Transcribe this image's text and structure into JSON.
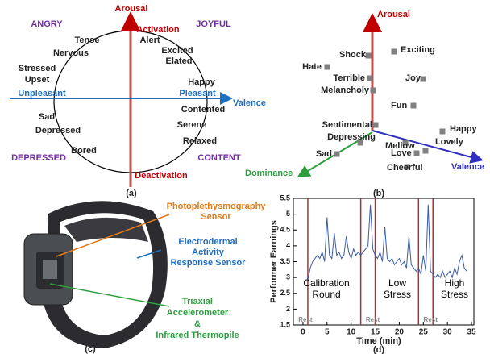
{
  "panel_a": {
    "caption": "(a)",
    "axis_top": "Arousal",
    "axis_right": "Valence",
    "poles": [
      "Activation",
      "Deactivation",
      "Unpleasant",
      "Pleasant"
    ],
    "quadrants": [
      "ANGRY",
      "JOYFUL",
      "DEPRESSED",
      "CONTENT"
    ],
    "emotions": [
      "Tense",
      "Alert",
      "Nervous",
      "Excited",
      "Elated",
      "Stressed",
      "Upset",
      "Happy",
      "Contented",
      "Serene",
      "Relaxed",
      "Sad",
      "Depressed",
      "Bored"
    ]
  },
  "panel_b": {
    "caption": "(b)",
    "axes": [
      "Arousal",
      "Valence",
      "Dominance"
    ],
    "words": [
      "Shock",
      "Exciting",
      "Hate",
      "Terrible",
      "Joy",
      "Melancholy",
      "Fun",
      "Sentimental",
      "Depressing",
      "Happy",
      "Mellow",
      "Lovely",
      "Sad",
      "Love",
      "Cheerful"
    ]
  },
  "panel_c": {
    "caption": "(c)",
    "ppg": [
      "Photoplethysmography",
      "Sensor"
    ],
    "eda": [
      "Electrodermal",
      "Activity",
      "Response Sensor"
    ],
    "acc": [
      "Triaxial",
      "Accelerometer",
      "&",
      "Infrared Thermopile"
    ]
  },
  "chart_data": {
    "type": "line",
    "caption": "(d)",
    "x_label": "Time (min)",
    "y_label": "Performer Earnings",
    "color": "#3b5ba8",
    "x": [
      1,
      1.5,
      2,
      2.5,
      3,
      3.5,
      4,
      4.5,
      5,
      5.5,
      6,
      6.5,
      7,
      7.5,
      8,
      8.5,
      9,
      9.5,
      10,
      10.5,
      11,
      11.5,
      12,
      12.5,
      13,
      13.5,
      14,
      14.5,
      15,
      15.5,
      16,
      16.5,
      17,
      17.5,
      18,
      18.5,
      19,
      19.5,
      20,
      20.5,
      21,
      21.5,
      22,
      22.5,
      23,
      23.5,
      24,
      24.5,
      25,
      25.5,
      26,
      26.5,
      27,
      27.5,
      28,
      28.5,
      29,
      29.5,
      30,
      30.5,
      31,
      31.5,
      32,
      32.5,
      33,
      33.5,
      34
    ],
    "values": [
      2.9,
      3.3,
      3.5,
      3.6,
      3.7,
      3.6,
      3.8,
      3.5,
      4.9,
      3.7,
      3.6,
      4.4,
      3.7,
      3.8,
      3.6,
      3.7,
      4.3,
      3.8,
      3.6,
      3.9,
      3.7,
      3.8,
      3.7,
      3.8,
      3.9,
      4.0,
      5.3,
      3.9,
      3.7,
      3.6,
      3.8,
      3.5,
      4.6,
      3.6,
      3.5,
      3.6,
      3.4,
      3.5,
      3.6,
      3.4,
      3.5,
      3.3,
      4.3,
      3.4,
      3.3,
      3.2,
      3.3,
      3.1,
      3.7,
      3.2,
      5.3,
      3.2,
      3.1,
      3.0,
      3.1,
      3.0,
      3.2,
      3.0,
      3.1,
      3.2,
      3.0,
      3.3,
      3.1,
      3.5,
      3.7,
      3.3,
      3.2
    ],
    "xlim": [
      -2,
      35.5
    ],
    "ylim": [
      1.5,
      5.5
    ],
    "xticks": [
      0,
      5,
      10,
      15,
      20,
      25,
      30,
      35
    ],
    "yticks": [
      1.5,
      2,
      2.5,
      3,
      3.5,
      4,
      4.5,
      5,
      5.5
    ],
    "vlines": [
      1,
      12,
      15,
      24,
      27
    ],
    "vline_color": "#b03030",
    "rest_labels": [
      "Rest",
      "Rest",
      "Rest"
    ],
    "phases": [
      [
        "Calibration",
        "Round"
      ],
      [
        "Low",
        "Stress"
      ],
      [
        "High",
        "Stress"
      ]
    ]
  }
}
